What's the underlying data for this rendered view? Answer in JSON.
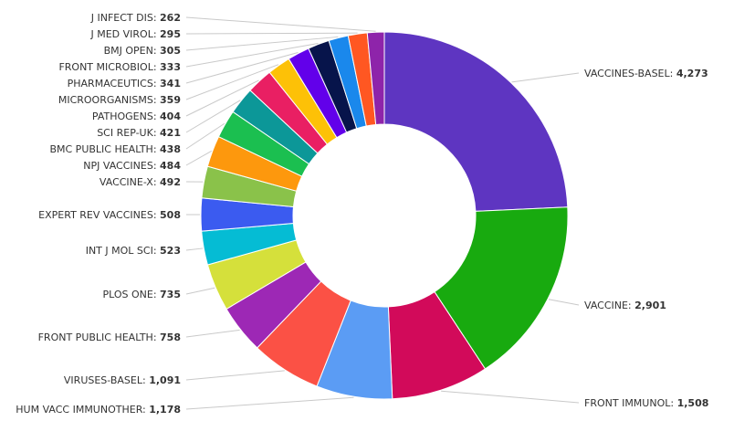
{
  "chart_data": {
    "type": "pie",
    "donut": true,
    "title": "",
    "slices": [
      {
        "label": "VACCINES-BASEL",
        "value": 4273,
        "value_text": "4,273",
        "color": "#5e35c1"
      },
      {
        "label": "VACCINE",
        "value": 2901,
        "value_text": "2,901",
        "color": "#18aa0f"
      },
      {
        "label": "FRONT IMMUNOL",
        "value": 1508,
        "value_text": "1,508",
        "color": "#d20a5a"
      },
      {
        "label": "HUM VACC IMMUNOTHER",
        "value": 1178,
        "value_text": "1,178",
        "color": "#5b9cf4"
      },
      {
        "label": "VIRUSES-BASEL",
        "value": 1091,
        "value_text": "1,091",
        "color": "#fb5145"
      },
      {
        "label": "FRONT PUBLIC HEALTH",
        "value": 758,
        "value_text": "758",
        "color": "#9d28b5"
      },
      {
        "label": "PLOS ONE",
        "value": 735,
        "value_text": "735",
        "color": "#d5e03b"
      },
      {
        "label": "INT J MOL SCI",
        "value": 523,
        "value_text": "523",
        "color": "#05bcd4"
      },
      {
        "label": "EXPERT REV VACCINES",
        "value": 508,
        "value_text": "508",
        "color": "#3b5bf0"
      },
      {
        "label": "VACCINE-X",
        "value": 492,
        "value_text": "492",
        "color": "#8ac24a"
      },
      {
        "label": "NPJ VACCINES",
        "value": 484,
        "value_text": "484",
        "color": "#fd980d"
      },
      {
        "label": "BMC PUBLIC HEALTH",
        "value": 438,
        "value_text": "438",
        "color": "#1bbf50"
      },
      {
        "label": "SCI REP-UK",
        "value": 421,
        "value_text": "421",
        "color": "#0c9798"
      },
      {
        "label": "PATHOGENS",
        "value": 404,
        "value_text": "404",
        "color": "#e91f63"
      },
      {
        "label": "MICROORGANISMS",
        "value": 359,
        "value_text": "359",
        "color": "#fdc107"
      },
      {
        "label": "PHARMACEUTICS",
        "value": 341,
        "value_text": "341",
        "color": "#6200ea"
      },
      {
        "label": "FRONT MICROBIOL",
        "value": 333,
        "value_text": "333",
        "color": "#07144b"
      },
      {
        "label": "BMJ OPEN",
        "value": 305,
        "value_text": "305",
        "color": "#1a88ec"
      },
      {
        "label": "J MED VIROL",
        "value": 295,
        "value_text": "295",
        "color": "#ff5722"
      },
      {
        "label": "J INFECT DIS",
        "value": 262,
        "value_text": "262",
        "color": "#8e24aa"
      }
    ],
    "legend": "none",
    "grid": false
  }
}
